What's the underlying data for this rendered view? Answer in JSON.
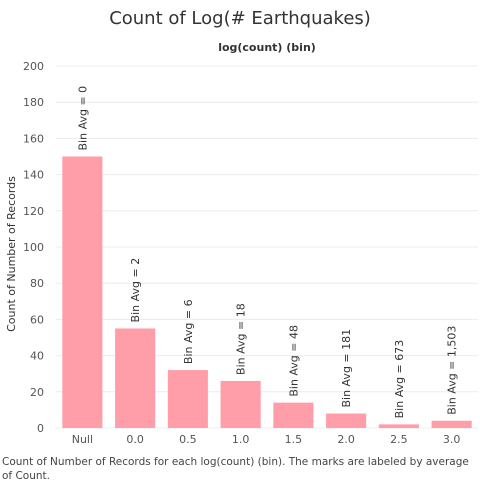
{
  "chart_data": {
    "type": "bar",
    "title": "Count of Log(# Earthquakes)",
    "top_label": "log(count) (bin)",
    "xlabel": "",
    "ylabel": "Count of Number of Records",
    "ylim": [
      0,
      200
    ],
    "yticks": [
      0,
      20,
      40,
      60,
      80,
      100,
      120,
      140,
      160,
      180,
      200
    ],
    "categories": [
      "Null",
      "0.0",
      "0.5",
      "1.0",
      "1.5",
      "2.0",
      "2.5",
      "3.0"
    ],
    "values": [
      150,
      55,
      32,
      26,
      14,
      8,
      2,
      4
    ],
    "data_labels": [
      "Bin Avg = 0",
      "Bin Avg = 2",
      "Bin Avg = 6",
      "Bin Avg = 18",
      "Bin Avg = 48",
      "Bin Avg = 181",
      "Bin Avg = 673",
      "Bin Avg = 1,503"
    ],
    "bar_color": "#ff9ea8",
    "grid": true,
    "caption": "Count of Number of Records for each log(count) (bin).  The marks are labeled by average of Count."
  }
}
